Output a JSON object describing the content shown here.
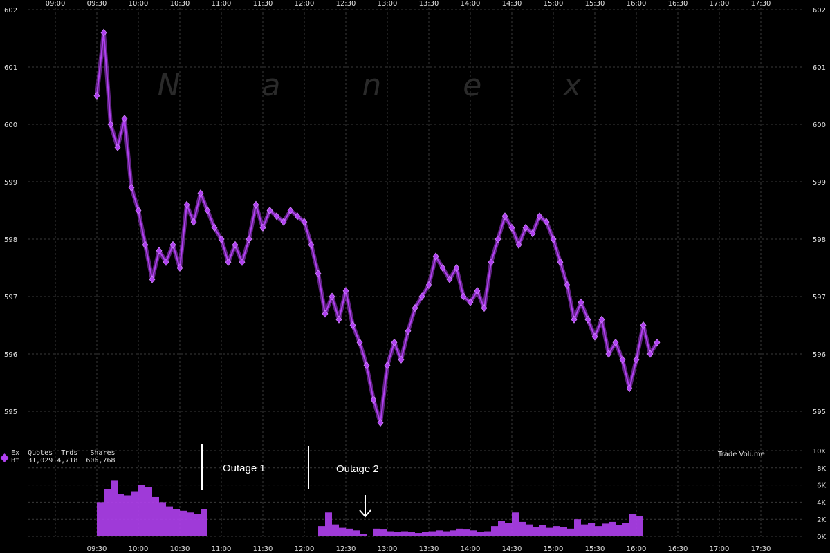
{
  "watermark": "N a n e x",
  "legend": {
    "header": "Ex  Quotes  Trds   Shares",
    "row_exchange": "Bt",
    "row_quotes": "31,029",
    "row_trades": "4,718",
    "row_shares": "606,768",
    "symbol_color": "#b040f0"
  },
  "annotations": {
    "outage1": "Outage 1",
    "outage2": "Outage 2",
    "arrow": "arrow-down-icon"
  },
  "volume_title": "Trade Volume",
  "chart_data": {
    "type": "scatter",
    "x_ticks_top": [
      "09:00",
      "09:30",
      "10:00",
      "10:30",
      "11:00",
      "11:30",
      "12:00",
      "12:30",
      "13:00",
      "13:30",
      "14:00",
      "14:30",
      "15:00",
      "15:30",
      "16:00",
      "16:30",
      "17:00",
      "17:30"
    ],
    "x_ticks_bottom": [
      "09:30",
      "10:00",
      "10:30",
      "11:00",
      "11:30",
      "12:00",
      "12:30",
      "13:00",
      "13:30",
      "14:00",
      "14:30",
      "15:00",
      "15:30",
      "16:00",
      "16:30",
      "17:00",
      "17:30"
    ],
    "price_ticks": [
      602,
      601,
      600,
      599,
      598,
      597,
      596,
      595
    ],
    "volume_ticks": [
      "10K",
      "8K",
      "6K",
      "4K",
      "2K",
      "0K"
    ],
    "price_ylim": [
      594.8,
      602
    ],
    "volume_ylim": [
      0,
      10000
    ],
    "grid": true,
    "price_series": [
      [
        "09:30",
        600.5
      ],
      [
        "09:35",
        601.6
      ],
      [
        "09:40",
        600.0
      ],
      [
        "09:45",
        599.6
      ],
      [
        "09:50",
        600.1
      ],
      [
        "09:55",
        598.9
      ],
      [
        "10:00",
        598.5
      ],
      [
        "10:05",
        597.9
      ],
      [
        "10:10",
        597.3
      ],
      [
        "10:15",
        597.8
      ],
      [
        "10:20",
        597.6
      ],
      [
        "10:25",
        597.9
      ],
      [
        "10:30",
        597.5
      ],
      [
        "10:35",
        598.6
      ],
      [
        "10:40",
        598.3
      ],
      [
        "10:45",
        598.8
      ],
      [
        "10:50",
        598.5
      ],
      [
        "10:55",
        598.2
      ],
      [
        "11:00",
        598.0
      ],
      [
        "11:05",
        597.6
      ],
      [
        "11:10",
        597.9
      ],
      [
        "11:15",
        597.6
      ],
      [
        "11:20",
        598.0
      ],
      [
        "11:25",
        598.6
      ],
      [
        "11:30",
        598.2
      ],
      [
        "11:35",
        598.5
      ],
      [
        "11:40",
        598.4
      ],
      [
        "11:45",
        598.3
      ],
      [
        "11:50",
        598.5
      ],
      [
        "11:55",
        598.4
      ],
      [
        "12:00",
        598.3
      ],
      [
        "12:05",
        597.9
      ],
      [
        "12:10",
        597.4
      ],
      [
        "12:15",
        596.7
      ],
      [
        "12:20",
        597.0
      ],
      [
        "12:25",
        596.6
      ],
      [
        "12:30",
        597.1
      ],
      [
        "12:35",
        596.5
      ],
      [
        "12:40",
        596.2
      ],
      [
        "12:45",
        595.8
      ],
      [
        "12:50",
        595.2
      ],
      [
        "12:55",
        594.8
      ],
      [
        "13:00",
        595.8
      ],
      [
        "13:05",
        596.2
      ],
      [
        "13:10",
        595.9
      ],
      [
        "13:15",
        596.4
      ],
      [
        "13:20",
        596.8
      ],
      [
        "13:25",
        597.0
      ],
      [
        "13:30",
        597.2
      ],
      [
        "13:35",
        597.7
      ],
      [
        "13:40",
        597.5
      ],
      [
        "13:45",
        597.3
      ],
      [
        "13:50",
        597.5
      ],
      [
        "13:55",
        597.0
      ],
      [
        "14:00",
        596.9
      ],
      [
        "14:05",
        597.1
      ],
      [
        "14:10",
        596.8
      ],
      [
        "14:15",
        597.6
      ],
      [
        "14:20",
        598.0
      ],
      [
        "14:25",
        598.4
      ],
      [
        "14:30",
        598.2
      ],
      [
        "14:35",
        597.9
      ],
      [
        "14:40",
        598.2
      ],
      [
        "14:45",
        598.1
      ],
      [
        "14:50",
        598.4
      ],
      [
        "14:55",
        598.3
      ],
      [
        "15:00",
        598.0
      ],
      [
        "15:05",
        597.6
      ],
      [
        "15:10",
        597.2
      ],
      [
        "15:15",
        596.6
      ],
      [
        "15:20",
        596.9
      ],
      [
        "15:25",
        596.6
      ],
      [
        "15:30",
        596.3
      ],
      [
        "15:35",
        596.6
      ],
      [
        "15:40",
        596.0
      ],
      [
        "15:45",
        596.2
      ],
      [
        "15:50",
        595.9
      ],
      [
        "15:55",
        595.4
      ],
      [
        "16:00",
        595.9
      ],
      [
        "16:05",
        596.5
      ],
      [
        "16:10",
        596.0
      ],
      [
        "16:15",
        596.2
      ]
    ],
    "volume_series": [
      [
        "09:30",
        4000
      ],
      [
        "09:35",
        5500
      ],
      [
        "09:40",
        6500
      ],
      [
        "09:45",
        5000
      ],
      [
        "09:50",
        4800
      ],
      [
        "09:55",
        5200
      ],
      [
        "10:00",
        6000
      ],
      [
        "10:05",
        5800
      ],
      [
        "10:10",
        4600
      ],
      [
        "10:15",
        4000
      ],
      [
        "10:20",
        3500
      ],
      [
        "10:25",
        3200
      ],
      [
        "10:30",
        3000
      ],
      [
        "10:35",
        2800
      ],
      [
        "10:40",
        2600
      ],
      [
        "10:45",
        3200
      ],
      [
        "12:10",
        1200
      ],
      [
        "12:15",
        2800
      ],
      [
        "12:20",
        1400
      ],
      [
        "12:25",
        1000
      ],
      [
        "12:30",
        900
      ],
      [
        "12:35",
        700
      ],
      [
        "12:40",
        300
      ],
      [
        "12:50",
        900
      ],
      [
        "12:55",
        800
      ],
      [
        "13:00",
        600
      ],
      [
        "13:05",
        500
      ],
      [
        "13:10",
        600
      ],
      [
        "13:15",
        500
      ],
      [
        "13:20",
        400
      ],
      [
        "13:25",
        500
      ],
      [
        "13:30",
        600
      ],
      [
        "13:35",
        700
      ],
      [
        "13:40",
        600
      ],
      [
        "13:45",
        700
      ],
      [
        "13:50",
        900
      ],
      [
        "13:55",
        800
      ],
      [
        "14:00",
        700
      ],
      [
        "14:05",
        500
      ],
      [
        "14:10",
        600
      ],
      [
        "14:15",
        1200
      ],
      [
        "14:20",
        1800
      ],
      [
        "14:25",
        1600
      ],
      [
        "14:30",
        2800
      ],
      [
        "14:35",
        1700
      ],
      [
        "14:40",
        1400
      ],
      [
        "14:45",
        1100
      ],
      [
        "14:50",
        1300
      ],
      [
        "14:55",
        1000
      ],
      [
        "15:00",
        1200
      ],
      [
        "15:05",
        1100
      ],
      [
        "15:10",
        900
      ],
      [
        "15:15",
        2000
      ],
      [
        "15:20",
        1400
      ],
      [
        "15:25",
        1600
      ],
      [
        "15:30",
        1200
      ],
      [
        "15:35",
        1500
      ],
      [
        "15:40",
        1700
      ],
      [
        "15:45",
        1300
      ],
      [
        "15:50",
        1600
      ],
      [
        "15:55",
        2600
      ],
      [
        "16:00",
        2400
      ]
    ]
  }
}
